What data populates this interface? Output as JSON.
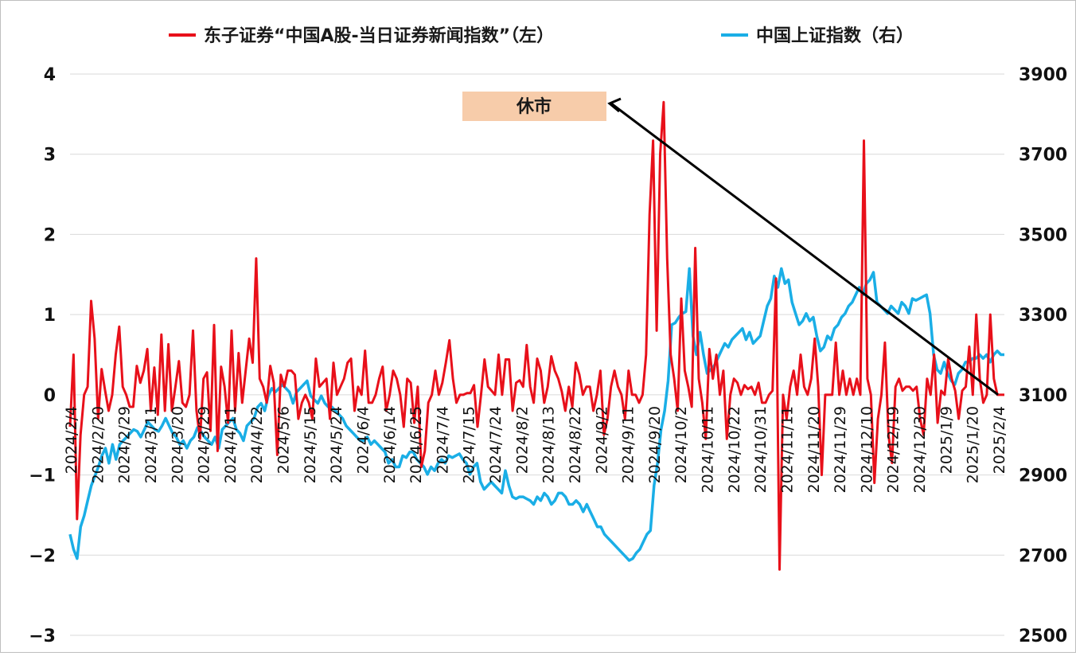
{
  "chart_data": {
    "type": "line",
    "title": "",
    "legend": {
      "position": "top"
    },
    "grid": {
      "y": true,
      "x": false
    },
    "annotation": {
      "text": "休市",
      "background": "#f7ccaa",
      "arrow_to": {
        "x": "2025/2/4",
        "y_left": 0
      }
    },
    "y_left": {
      "min": -3,
      "max": 4,
      "ticks": [
        "4",
        "3",
        "2",
        "1",
        "0",
        "−1",
        "−2",
        "−3"
      ]
    },
    "y_right": {
      "min": 2500,
      "max": 4000,
      "ticks": [
        "3900",
        "3700",
        "3500",
        "3300",
        "3100",
        "2900",
        "2700",
        "2500"
      ]
    },
    "x_ticks": [
      "2024/2/4",
      "2024/2/20",
      "2024/2/29",
      "2024/3/11",
      "2024/3/20",
      "2024/3/29",
      "2024/4/11",
      "2024/4/22",
      "2024/5/6",
      "2024/5/15",
      "2024/5/24",
      "2024/6/4",
      "2024/6/14",
      "2024/6/25",
      "2024/7/4",
      "2024/7/15",
      "2024/7/24",
      "2024/8/2",
      "2024/8/13",
      "2024/8/22",
      "2024/9/2",
      "2024/9/11",
      "2024/9/20",
      "2024/10/2",
      "2024/10/11",
      "2024/10/22",
      "2024/10/31",
      "2024/11/11",
      "2024/11/20",
      "2024/11/29",
      "2024/12/10",
      "2024/12/19",
      "2024/12/30",
      "2025/1/9",
      "2025/1/20",
      "2025/2/4"
    ],
    "colors": {
      "news": "#e8101a",
      "sse": "#1aaee6",
      "grid": "#d9d9d9",
      "arrow": "#000000"
    },
    "series": [
      {
        "name": "东子证券“中国A股-当日证券新闻指数”（左）",
        "axis": "left",
        "values": [
          -0.4,
          0.5,
          -1.55,
          -0.5,
          0,
          0.1,
          1.17,
          0.7,
          -0.3,
          0.32,
          0.05,
          -0.2,
          0,
          0.5,
          0.85,
          0.1,
          0,
          -0.15,
          -0.15,
          0.36,
          0.15,
          0.3,
          0.57,
          -0.2,
          0.34,
          -0.25,
          0.75,
          -0.2,
          0.63,
          -0.2,
          0.1,
          0.42,
          -0.1,
          -0.15,
          0,
          0.8,
          -0.2,
          -0.55,
          0.2,
          0.28,
          -0.45,
          0.87,
          -0.7,
          0.35,
          0.1,
          -0.35,
          0.8,
          -0.2,
          0.52,
          -0.1,
          0.3,
          0.7,
          0.4,
          1.7,
          0.2,
          0.1,
          -0.1,
          0.36,
          0.15,
          -0.75,
          0.25,
          0.1,
          0.3,
          0.3,
          0.25,
          -0.3,
          -0.1,
          0,
          -0.1,
          -0.3,
          0.45,
          0.1,
          0.15,
          0.2,
          -0.3,
          0.4,
          0,
          0.1,
          0.2,
          0.4,
          0.45,
          -0.2,
          0.1,
          0,
          0.55,
          -0.1,
          -0.1,
          0,
          0.2,
          0.35,
          -0.2,
          0,
          0.3,
          0.2,
          0,
          -0.4,
          0.2,
          0.15,
          -0.35,
          0.1,
          -0.9,
          -0.7,
          -0.1,
          0,
          0.3,
          0,
          0.15,
          0.4,
          0.68,
          0.2,
          -0.1,
          0,
          0,
          0.02,
          0.02,
          0.12,
          -0.4,
          0,
          0.44,
          0.1,
          0.05,
          0,
          0.5,
          0,
          0.44,
          0.44,
          -0.2,
          0.15,
          0.18,
          0.1,
          0.62,
          0.1,
          -0.1,
          0.45,
          0.3,
          -0.1,
          0.1,
          0.48,
          0.3,
          0.2,
          0.04,
          -0.2,
          0.1,
          -0.15,
          0.4,
          0.25,
          0,
          0.1,
          0.1,
          -0.2,
          0,
          0.3,
          -0.5,
          -0.3,
          0.1,
          0.3,
          0.1,
          0,
          -0.3,
          0.3,
          0,
          0,
          -0.1,
          0,
          0.5,
          2.25,
          3.17,
          0.8,
          3.0,
          3.65,
          1.7,
          0.5,
          0.2,
          -0.2,
          1.2,
          0.3,
          0.1,
          -0.15,
          1.83,
          0.2,
          -0.1,
          -0.55,
          0.57,
          0.2,
          0.5,
          0,
          0.3,
          -0.55,
          0,
          0.2,
          0.15,
          0,
          0.12,
          0.07,
          0.1,
          0,
          0.15,
          -0.1,
          -0.1,
          0,
          0.05,
          1.45,
          -2.18,
          0,
          -0.3,
          0.1,
          0.3,
          0,
          0.5,
          0.1,
          0,
          0.2,
          0.7,
          0.1,
          -1,
          0,
          0,
          0,
          0.65,
          0,
          0.3,
          0,
          0.2,
          0,
          0.2,
          0,
          3.17,
          0.2,
          0,
          -1.1,
          -0.3,
          0,
          0.65,
          -0.5,
          -0.85,
          0.1,
          0.2,
          0.05,
          0.1,
          0.1,
          0.05,
          0.1,
          -0.3,
          -0.5,
          0.2,
          0,
          0.5,
          -0.35,
          0.05,
          0,
          0.45,
          0.2,
          0.05,
          -0.3,
          0.05,
          0.1,
          0.6,
          0,
          1,
          0.2,
          -0.1,
          0,
          1,
          0.2,
          0,
          0,
          0
        ],
        "note_count": 0
      },
      {
        "name": "中国上证指数（右）",
        "axis": "right",
        "values": [
          2770,
          2730,
          2705,
          2790,
          2820,
          2860,
          2900,
          2925,
          2950,
          2980,
          3000,
          2960,
          3010,
          2970,
          3010,
          3020,
          3030,
          3040,
          3050,
          3045,
          3030,
          3050,
          3070,
          3060,
          3050,
          3045,
          3060,
          3080,
          3060,
          3040,
          3030,
          3010,
          3020,
          3000,
          3020,
          3030,
          3055,
          3045,
          3030,
          3020,
          3010,
          3030,
          3000,
          3050,
          3060,
          3070,
          3080,
          3050,
          3040,
          3020,
          3060,
          3070,
          3080,
          3110,
          3120,
          3100,
          3140,
          3160,
          3150,
          3160,
          3170,
          3160,
          3150,
          3120,
          3150,
          3160,
          3170,
          3180,
          3140,
          3130,
          3120,
          3140,
          3120,
          3110,
          3110,
          3100,
          3090,
          3080,
          3060,
          3050,
          3040,
          3030,
          3020,
          3020,
          3030,
          3010,
          3020,
          3010,
          3000,
          2990,
          2960,
          2970,
          2950,
          2950,
          2980,
          2975,
          2990,
          2990,
          2970,
          2960,
          2950,
          2930,
          2950,
          2940,
          2960,
          2970,
          2960,
          2980,
          2975,
          2980,
          2985,
          2970,
          2960,
          2930,
          2950,
          2960,
          2910,
          2890,
          2900,
          2910,
          2900,
          2890,
          2880,
          2940,
          2900,
          2870,
          2865,
          2870,
          2870,
          2865,
          2860,
          2850,
          2870,
          2860,
          2880,
          2870,
          2850,
          2860,
          2880,
          2880,
          2870,
          2850,
          2850,
          2860,
          2850,
          2830,
          2850,
          2830,
          2810,
          2790,
          2790,
          2770,
          2760,
          2750,
          2740,
          2730,
          2720,
          2710,
          2700,
          2705,
          2720,
          2730,
          2750,
          2770,
          2780,
          2900,
          2960,
          3050,
          3100,
          3180,
          3330,
          3335,
          3350,
          3360,
          3365,
          3480,
          3300,
          3250,
          3310,
          3250,
          3200,
          3210,
          3220,
          3240,
          3260,
          3280,
          3270,
          3290,
          3300,
          3310,
          3320,
          3290,
          3310,
          3280,
          3290,
          3300,
          3340,
          3380,
          3400,
          3460,
          3430,
          3480,
          3440,
          3450,
          3390,
          3360,
          3330,
          3340,
          3360,
          3340,
          3350,
          3300,
          3260,
          3270,
          3300,
          3290,
          3320,
          3330,
          3350,
          3360,
          3380,
          3390,
          3410,
          3430,
          3410,
          3440,
          3450,
          3470,
          3390,
          3380,
          3370,
          3360,
          3380,
          3370,
          3360,
          3390,
          3380,
          3360,
          3400,
          3395,
          3400,
          3405,
          3410,
          3360,
          3250,
          3210,
          3200,
          3230,
          3200,
          3180,
          3170,
          3200,
          3210,
          3230,
          3230,
          3240,
          3240,
          3250,
          3240,
          3250,
          3230,
          3250,
          3260,
          3250,
          3250
        ]
      }
    ]
  }
}
